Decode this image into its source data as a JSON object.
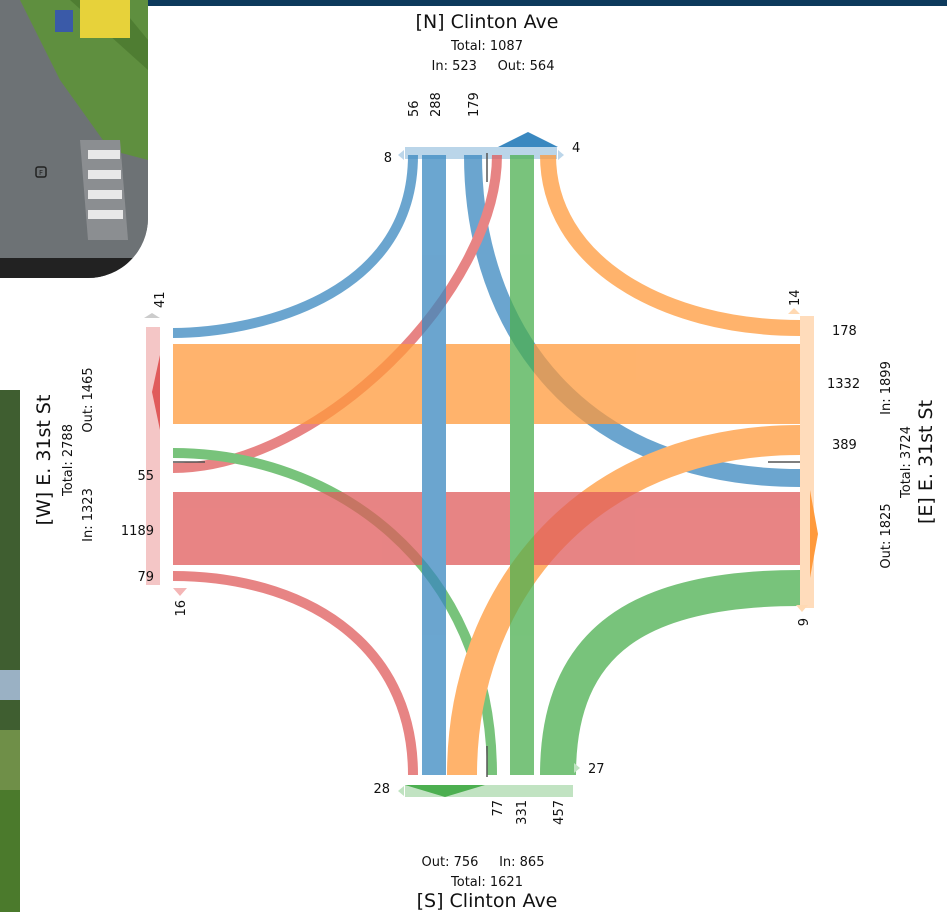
{
  "approaches": {
    "north": {
      "name": "[N] Clinton Ave",
      "total": "Total: 1087",
      "in_out": "In: 523     Out: 564"
    },
    "south": {
      "name": "[S] Clinton Ave",
      "total": "Total: 1621",
      "in_out": "Out: 756     In: 865"
    },
    "west": {
      "name": "[W] E. 31st St",
      "total": "Total: 2788",
      "in": "In: 1323",
      "out": "Out: 1465"
    },
    "east": {
      "name": "[E] E. 31st St",
      "total": "Total: 3724",
      "in": "In: 1899",
      "out": "Out: 1825"
    }
  },
  "flow_labels": {
    "north": [
      "56",
      "288",
      "179"
    ],
    "north_uturn": "8",
    "north_right": "4",
    "south": [
      "77",
      "331",
      "457"
    ],
    "south_uturn": "28",
    "south_right": "27",
    "west": [
      "55",
      "1189",
      "79"
    ],
    "west_top": "41",
    "west_bottom": "16",
    "east": [
      "178",
      "1332",
      "389"
    ],
    "east_top": "14",
    "east_bottom": "9"
  },
  "colors": {
    "north": "#3a88c0",
    "south": "#4caf50",
    "west": "#e05b5b",
    "east": "#ff9a3c",
    "header": "#0d3a5c"
  },
  "camera_icons": {
    "cam1": "video-camera-feed",
    "cam2": "video-camera-feed"
  }
}
